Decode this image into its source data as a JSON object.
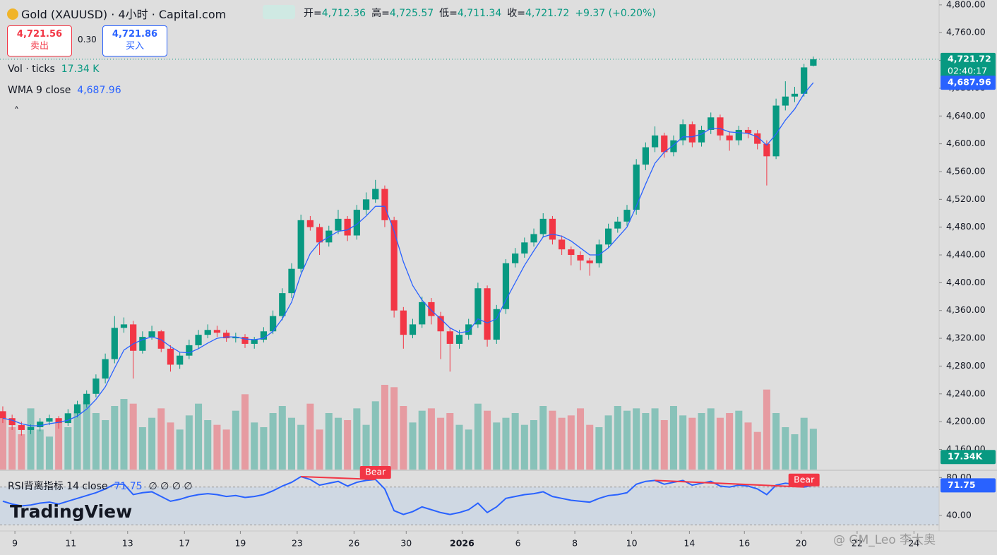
{
  "header": {
    "title": "Gold (XAUUSD) · 4小时 · Capital.com",
    "ohlc": [
      {
        "label": "开=",
        "value": "4,712.36"
      },
      {
        "label": "高=",
        "value": "4,725.57"
      },
      {
        "label": "低=",
        "value": "4,711.34"
      },
      {
        "label": "收=",
        "value": "4,721.72"
      }
    ],
    "change": "+9.37 (+0.20%)",
    "sell_price": "4,721.56",
    "sell_label": "卖出",
    "spread": "0.30",
    "buy_price": "4,721.86",
    "buy_label": "买入"
  },
  "indicators": {
    "volume_name": "Vol · ticks",
    "volume_value": "17.34 K",
    "wma_name": "WMA 9 close",
    "wma_value": "4,687.96",
    "rsi_name": "RSI背离指标 14 close",
    "rsi_value": "71.75",
    "rsi_extra": "∅ ∅ ∅ ∅"
  },
  "watermark": "TradingView",
  "credit": "@ GM_Leo 李大奥",
  "chart_data": {
    "type": "candlestick",
    "up_color": "#089981",
    "down_color": "#f23645",
    "x": [
      0,
      1,
      2,
      3,
      4,
      5,
      6,
      7,
      8,
      9,
      10,
      11,
      12,
      13,
      14,
      15,
      16,
      17,
      18,
      19,
      20,
      21,
      22,
      23,
      24,
      25,
      26,
      27,
      28,
      29,
      30,
      31,
      32,
      33,
      34,
      35,
      36,
      37,
      38,
      39,
      40,
      41,
      42,
      43,
      44,
      45,
      46,
      47,
      48,
      49,
      50,
      51,
      52,
      53,
      54,
      55,
      56,
      57,
      58,
      59,
      60,
      61,
      62,
      63,
      64,
      65,
      66,
      67,
      68,
      69,
      70,
      71,
      72,
      73,
      74,
      75,
      76,
      77,
      78,
      79,
      80,
      81,
      82,
      83,
      84,
      85,
      86,
      87
    ],
    "open": [
      4215,
      4205,
      4195,
      4188,
      4192,
      4200,
      4205,
      4198,
      4212,
      4225,
      4240,
      4262,
      4290,
      4335,
      4340,
      4302,
      4322,
      4330,
      4305,
      4282,
      4295,
      4310,
      4325,
      4332,
      4328,
      4320,
      4322,
      4312,
      4318,
      4330,
      4352,
      4385,
      4420,
      4490,
      4480,
      4458,
      4475,
      4492,
      4468,
      4505,
      4520,
      4535,
      4490,
      4360,
      4325,
      4340,
      4372,
      4352,
      4330,
      4312,
      4325,
      4340,
      4392,
      4318,
      4362,
      4428,
      4442,
      4458,
      4470,
      4492,
      4462,
      4448,
      4440,
      4432,
      4428,
      4455,
      4478,
      4488,
      4505,
      4570,
      4595,
      4612,
      4588,
      4605,
      4628,
      4602,
      4620,
      4638,
      4612,
      4605,
      4620,
      4615,
      4600,
      4582,
      4655,
      4668,
      4672,
      4712.36
    ],
    "high": [
      4222,
      4210,
      4200,
      4196,
      4205,
      4210,
      4208,
      4218,
      4230,
      4245,
      4268,
      4298,
      4352,
      4350,
      4345,
      4330,
      4338,
      4332,
      4310,
      4300,
      4318,
      4332,
      4340,
      4338,
      4332,
      4328,
      4326,
      4322,
      4336,
      4360,
      4392,
      4428,
      4498,
      4496,
      4485,
      4482,
      4505,
      4496,
      4512,
      4530,
      4548,
      4540,
      4495,
      4365,
      4348,
      4380,
      4378,
      4358,
      4336,
      4332,
      4348,
      4400,
      4396,
      4368,
      4434,
      4450,
      4465,
      4478,
      4500,
      4496,
      4468,
      4452,
      4445,
      4436,
      4462,
      4485,
      4495,
      4512,
      4578,
      4602,
      4625,
      4616,
      4612,
      4635,
      4632,
      4626,
      4645,
      4642,
      4618,
      4626,
      4624,
      4620,
      4605,
      4665,
      4690,
      4682,
      4715,
      4725.57
    ],
    "low": [
      4198,
      4188,
      4180,
      4182,
      4186,
      4195,
      4190,
      4194,
      4206,
      4220,
      4235,
      4255,
      4284,
      4328,
      4262,
      4298,
      4318,
      4300,
      4272,
      4276,
      4290,
      4305,
      4320,
      4322,
      4315,
      4314,
      4306,
      4305,
      4314,
      4326,
      4346,
      4378,
      4415,
      4475,
      4440,
      4452,
      4470,
      4460,
      4462,
      4498,
      4515,
      4480,
      4350,
      4305,
      4320,
      4335,
      4340,
      4290,
      4272,
      4305,
      4318,
      4335,
      4308,
      4312,
      4355,
      4422,
      4436,
      4452,
      4465,
      4455,
      4440,
      4425,
      4418,
      4410,
      4422,
      4450,
      4472,
      4482,
      4498,
      4562,
      4588,
      4580,
      4582,
      4598,
      4595,
      4596,
      4614,
      4605,
      4590,
      4598,
      4608,
      4592,
      4540,
      4578,
      4648,
      4660,
      4668,
      4711.34
    ],
    "close": [
      4205,
      4195,
      4188,
      4192,
      4200,
      4205,
      4198,
      4212,
      4225,
      4240,
      4262,
      4290,
      4335,
      4340,
      4302,
      4322,
      4330,
      4305,
      4282,
      4295,
      4310,
      4325,
      4332,
      4328,
      4320,
      4322,
      4312,
      4318,
      4330,
      4352,
      4385,
      4420,
      4490,
      4480,
      4458,
      4475,
      4492,
      4468,
      4505,
      4520,
      4535,
      4490,
      4360,
      4325,
      4340,
      4372,
      4352,
      4330,
      4312,
      4325,
      4340,
      4392,
      4318,
      4362,
      4428,
      4442,
      4458,
      4470,
      4492,
      4462,
      4448,
      4440,
      4432,
      4428,
      4455,
      4478,
      4488,
      4505,
      4570,
      4595,
      4612,
      4588,
      4605,
      4628,
      4602,
      4620,
      4638,
      4612,
      4605,
      4620,
      4615,
      4600,
      4582,
      4655,
      4668,
      4672,
      4710,
      4721.72
    ],
    "xlim": [
      -0.3,
      100.5
    ],
    "xticks": [
      {
        "value": 1.3,
        "label": "9"
      },
      {
        "value": 7.3,
        "label": "11"
      },
      {
        "value": 13.4,
        "label": "13"
      },
      {
        "value": 19.5,
        "label": "17"
      },
      {
        "value": 25.5,
        "label": "19"
      },
      {
        "value": 31.6,
        "label": "23"
      },
      {
        "value": 37.7,
        "label": "26"
      },
      {
        "value": 43.3,
        "label": "30"
      },
      {
        "value": 49.3,
        "label": "2026"
      },
      {
        "value": 55.3,
        "label": "6"
      },
      {
        "value": 61.4,
        "label": "8"
      },
      {
        "value": 67.5,
        "label": "10"
      },
      {
        "value": 73.7,
        "label": "14"
      },
      {
        "value": 79.6,
        "label": "16"
      },
      {
        "value": 85.7,
        "label": "20"
      },
      {
        "value": 91.7,
        "label": "22"
      },
      {
        "value": 97.8,
        "label": "24"
      }
    ],
    "ylim": [
      4131,
      4807
    ],
    "yticks": [
      {
        "value": 4160,
        "label": "4,160.00"
      },
      {
        "value": 4200,
        "label": "4,200.00"
      },
      {
        "value": 4240,
        "label": "4,240.00"
      },
      {
        "value": 4280,
        "label": "4,280.00"
      },
      {
        "value": 4320,
        "label": "4,320.00"
      },
      {
        "value": 4360,
        "label": "4,360.00"
      },
      {
        "value": 4400,
        "label": "4,400.00"
      },
      {
        "value": 4440,
        "label": "4,440.00"
      },
      {
        "value": 4480,
        "label": "4,480.00"
      },
      {
        "value": 4520,
        "label": "4,520.00"
      },
      {
        "value": 4560,
        "label": "4,560.00"
      },
      {
        "value": 4600,
        "label": "4,600.00"
      },
      {
        "value": 4640,
        "label": "4,640.00"
      },
      {
        "value": 4680,
        "label": "4,680.00"
      },
      {
        "value": 4720,
        "label": "4,720.00"
      },
      {
        "value": 4760,
        "label": "4,760.00"
      },
      {
        "value": 4800,
        "label": "4,800.00"
      }
    ],
    "last_price": {
      "value": 4721.72,
      "label": "4,721.72",
      "countdown": "02:40:17"
    },
    "volume": {
      "ylim": [
        0,
        42000
      ],
      "tag": "17.34K",
      "values": [
        22000,
        18000,
        15000,
        26000,
        17000,
        14000,
        20000,
        18000,
        25000,
        29000,
        24000,
        21000,
        27000,
        30000,
        28000,
        18000,
        22000,
        26000,
        20000,
        17000,
        23000,
        28000,
        21000,
        19000,
        17000,
        25000,
        32000,
        20000,
        18000,
        24000,
        27000,
        22000,
        19000,
        28000,
        17000,
        24000,
        22000,
        21000,
        26000,
        19000,
        29000,
        36000,
        35000,
        27000,
        20000,
        25000,
        26000,
        22000,
        24000,
        19000,
        17000,
        28000,
        25000,
        20000,
        22000,
        24000,
        19000,
        21000,
        27000,
        25000,
        22000,
        23000,
        26000,
        19000,
        18000,
        23000,
        27000,
        25000,
        26000,
        24000,
        26000,
        21000,
        27000,
        23000,
        22000,
        24000,
        26000,
        22000,
        24000,
        25000,
        20000,
        16000,
        34000,
        24000,
        18000,
        15000,
        22000,
        17340
      ]
    },
    "wma": {
      "color": "#2962ff",
      "tag": "4,687.96",
      "values": [
        4205,
        4202,
        4197,
        4194,
        4194,
        4197,
        4199,
        4202,
        4208,
        4218,
        4232,
        4250,
        4277,
        4303,
        4312,
        4318,
        4322,
        4318,
        4308,
        4300,
        4299,
        4305,
        4313,
        4320,
        4322,
        4322,
        4319,
        4318,
        4320,
        4330,
        4348,
        4372,
        4412,
        4442,
        4458,
        4466,
        4474,
        4476,
        4484,
        4496,
        4510,
        4510,
        4474,
        4430,
        4396,
        4375,
        4360,
        4348,
        4335,
        4328,
        4330,
        4348,
        4342,
        4348,
        4375,
        4400,
        4425,
        4446,
        4466,
        4470,
        4467,
        4460,
        4450,
        4440,
        4440,
        4450,
        4465,
        4480,
        4510,
        4542,
        4572,
        4588,
        4598,
        4610,
        4610,
        4614,
        4622,
        4622,
        4617,
        4616,
        4615,
        4610,
        4598,
        4614,
        4634,
        4650,
        4672,
        4687.96
      ]
    },
    "rsi": {
      "color": "#2962ff",
      "ylim": [
        25,
        87
      ],
      "yticks": [
        {
          "value": 40,
          "label": "40.00"
        },
        {
          "value": 80,
          "label": "80.00"
        }
      ],
      "band": [
        30,
        70
      ],
      "tag": "71.75",
      "values": [
        55,
        52,
        50,
        51,
        53,
        54,
        52,
        55,
        58,
        61,
        64,
        68,
        73,
        73,
        62,
        64,
        65,
        60,
        55,
        57,
        60,
        62,
        63,
        62,
        60,
        61,
        59,
        60,
        62,
        66,
        71,
        75,
        81,
        78,
        72,
        74,
        76,
        71,
        75,
        77,
        78,
        68,
        45,
        41,
        44,
        49,
        46,
        43,
        41,
        43,
        46,
        53,
        43,
        49,
        58,
        60,
        62,
        63,
        65,
        60,
        58,
        56,
        55,
        54,
        58,
        61,
        62,
        64,
        73,
        76,
        77,
        73,
        75,
        77,
        72,
        74,
        76,
        71,
        70,
        72,
        71,
        68,
        62,
        72,
        74,
        73,
        70,
        71.75
      ],
      "divergences": [
        {
          "label": "Bear",
          "from": 32,
          "to": 40
        },
        {
          "label": "Bear",
          "from": 70,
          "to": 86
        }
      ]
    }
  }
}
